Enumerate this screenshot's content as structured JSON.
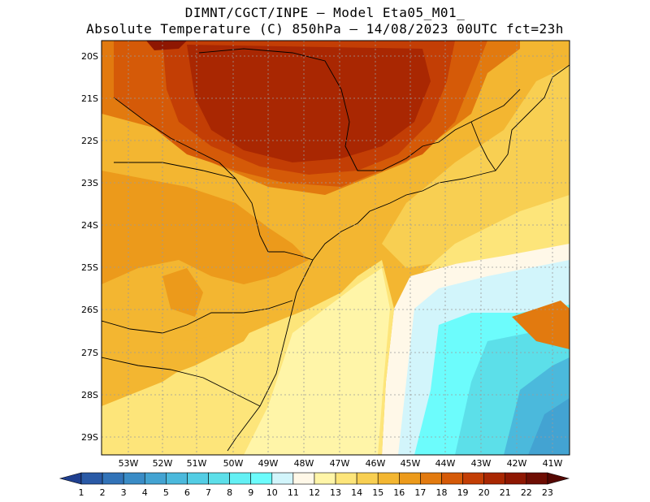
{
  "header": {
    "line1": "DIMNT/CGCT/INPE —   Model Eta05_M01_",
    "line2": "Absolute Temperature (C) 850hPa —  14/08/2023 00UTC fct=23h"
  },
  "axes": {
    "lat_labels": [
      "20S",
      "21S",
      "22S",
      "23S",
      "24S",
      "25S",
      "26S",
      "27S",
      "28S",
      "29S"
    ],
    "lon_labels": [
      "53W",
      "52W",
      "51W",
      "50W",
      "49W",
      "48W",
      "47W",
      "46W",
      "45W",
      "44W",
      "43W",
      "42W",
      "41W"
    ]
  },
  "colorbar": {
    "labels": [
      "1",
      "2",
      "3",
      "4",
      "5",
      "6",
      "7",
      "8",
      "9",
      "10",
      "11",
      "12",
      "13",
      "14",
      "15",
      "16",
      "17",
      "18",
      "19",
      "20",
      "21",
      "22",
      "23"
    ],
    "colors": [
      "#1f3f8f",
      "#2a5aa6",
      "#3273b8",
      "#3a8cc6",
      "#43a3d2",
      "#4bb9dc",
      "#53cde4",
      "#5cdfe9",
      "#63f0f4",
      "#6cfcfc",
      "#d2f5fb",
      "#fff8e8",
      "#fff5a8",
      "#fde57a",
      "#f8cf52",
      "#f3b631",
      "#ec9a1b",
      "#e27a0f",
      "#d55a08",
      "#c33e05",
      "#a92702",
      "#8e1702",
      "#6e0d03",
      "#540702"
    ]
  },
  "map": {
    "ocean_colors": [
      "#d2f5fb",
      "#6cfcfc",
      "#5cdfe9",
      "#4bb9dc",
      "#43a3d2"
    ],
    "land_colors": [
      "#fff5a8",
      "#fde57a",
      "#f8cf52",
      "#f3b631",
      "#ec9a1b",
      "#e27a0f",
      "#d55a08",
      "#c33e05",
      "#a92702"
    ]
  }
}
